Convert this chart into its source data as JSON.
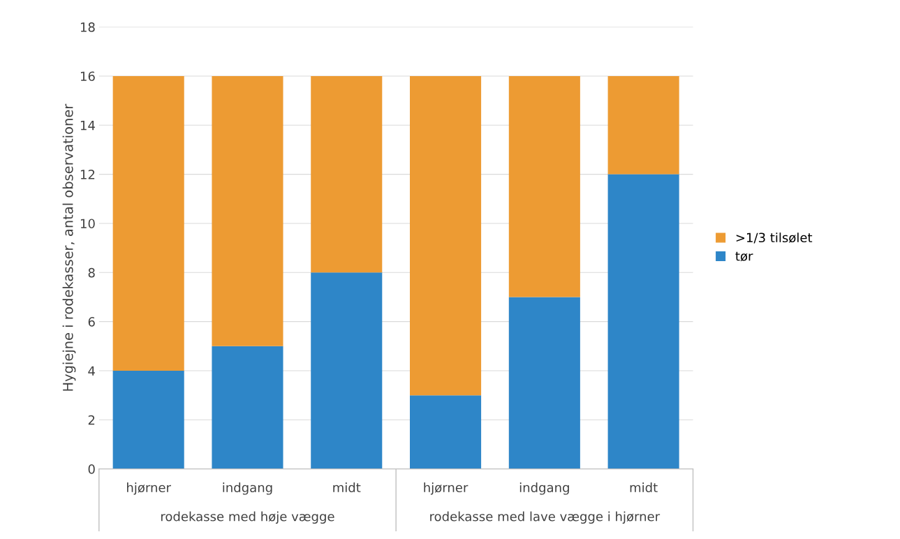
{
  "chart_data": {
    "type": "bar",
    "stacked": true,
    "ylabel": "Hygiejne i rodekasser, antal observationer",
    "categories": [
      "hjørner",
      "indgang",
      "midt",
      "hjørner",
      "indgang",
      "midt"
    ],
    "series": [
      {
        "name": "tør",
        "color": "#2e86c8",
        "values": [
          4,
          5,
          8,
          3,
          7,
          12
        ]
      },
      {
        "name": ">1/3 tilsølet",
        "color": "#ed9b33",
        "values": [
          12,
          11,
          8,
          13,
          9,
          4
        ]
      }
    ],
    "annotations": [
      "rodekasse med høje vægge",
      "rodekasse med lave vægge i hjørner"
    ],
    "ylim": [
      0,
      18
    ],
    "yticks": [
      0,
      2,
      4,
      6,
      8,
      10,
      12,
      14,
      16,
      18
    ],
    "grid": "y",
    "legend": "right"
  }
}
